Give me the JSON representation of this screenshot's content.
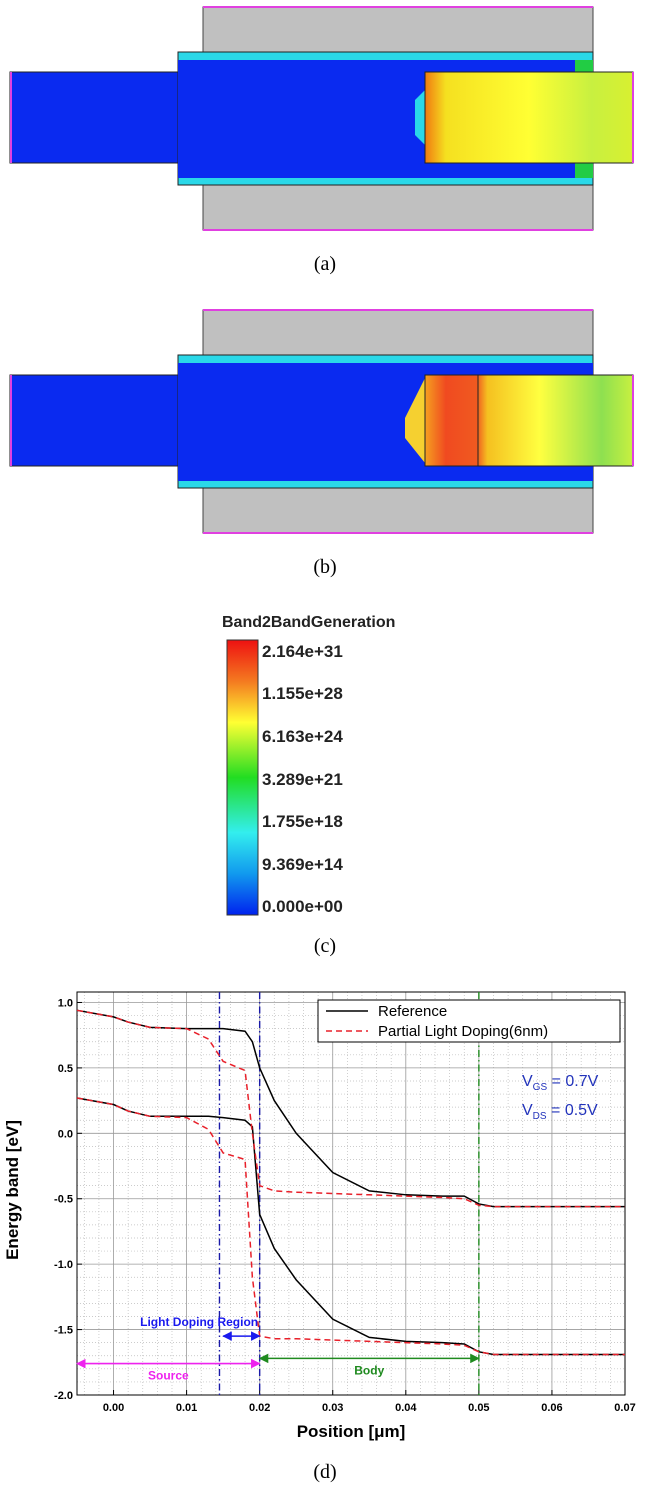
{
  "figure": {
    "panel_labels": [
      "(a)",
      "(b)",
      "(c)",
      "(d)"
    ],
    "colorbar": {
      "title": "Band2BandGeneration",
      "labels": [
        "2.164e+31",
        "1.155e+28",
        "6.163e+24",
        "3.289e+21",
        "1.755e+18",
        "9.369e+14",
        "0.000e+00"
      ]
    }
  },
  "chart_data": {
    "type": "line",
    "xlabel": "Position [μm]",
    "ylabel": "Energy band [eV]",
    "x": [
      -0.005,
      0,
      0.002,
      0.005,
      0.01,
      0.013,
      0.015,
      0.018,
      0.019,
      0.02,
      0.022,
      0.025,
      0.03,
      0.035,
      0.04,
      0.045,
      0.048,
      0.05,
      0.052,
      0.07
    ],
    "series": [
      {
        "name": "Reference",
        "color": "#000000",
        "dashed": false,
        "bands": [
          [
            0.94,
            0.89,
            0.85,
            0.81,
            0.8,
            0.8,
            0.8,
            0.78,
            0.7,
            0.5,
            0.25,
            0.0,
            -0.3,
            -0.44,
            -0.47,
            -0.48,
            -0.48,
            -0.54,
            -0.56,
            -0.56
          ],
          [
            0.27,
            0.22,
            0.17,
            0.13,
            0.13,
            0.13,
            0.12,
            0.1,
            0.05,
            -0.62,
            -0.88,
            -1.12,
            -1.42,
            -1.56,
            -1.59,
            -1.6,
            -1.61,
            -1.67,
            -1.69,
            -1.69
          ]
        ]
      },
      {
        "name": "Partial Light Doping(6nm)",
        "color": "#e8202a",
        "dashed": true,
        "bands": [
          [
            0.94,
            0.89,
            0.85,
            0.81,
            0.8,
            0.72,
            0.55,
            0.48,
            0.0,
            -0.4,
            -0.44,
            -0.45,
            -0.46,
            -0.47,
            -0.48,
            -0.49,
            -0.5,
            -0.55,
            -0.56,
            -0.56
          ],
          [
            0.27,
            0.22,
            0.17,
            0.13,
            0.12,
            0.03,
            -0.15,
            -0.2,
            -1.1,
            -1.55,
            -1.57,
            -1.57,
            -1.58,
            -1.59,
            -1.6,
            -1.61,
            -1.62,
            -1.67,
            -1.69,
            -1.69
          ]
        ]
      }
    ],
    "xlim": [
      -0.005,
      0.07
    ],
    "ylim": [
      -2,
      1.08
    ],
    "xticks": [
      {
        "value": 0,
        "label": "0.00"
      },
      {
        "value": 0.01,
        "label": "0.01"
      },
      {
        "value": 0.02,
        "label": "0.02"
      },
      {
        "value": 0.03,
        "label": "0.03"
      },
      {
        "value": 0.04,
        "label": "0.04"
      },
      {
        "value": 0.05,
        "label": "0.05"
      },
      {
        "value": 0.06,
        "label": "0.06"
      },
      {
        "value": 0.07,
        "label": "0.07"
      }
    ],
    "yticks": [
      {
        "value": 1,
        "label": "1.0"
      },
      0.5,
      {
        "value": 0,
        "label": "0.0"
      },
      -0.5,
      {
        "value": -1,
        "label": "-1.0"
      },
      -1.5,
      {
        "value": -2,
        "label": "-2.0"
      }
    ],
    "grid": true,
    "legend": "upper right",
    "vlines": [
      {
        "x": 0.0145,
        "color": "#1a1aa8"
      },
      {
        "x": 0.02,
        "color": "#1a1aa8"
      },
      {
        "x": 0.05,
        "color": "#1f8a1f"
      }
    ],
    "arrows": [
      {
        "label": "Light Doping Region",
        "x": [
          0.015,
          0.02
        ],
        "y": -1.55,
        "color": "#1a1aee"
      },
      {
        "label": "Source",
        "x": [
          -0.005,
          0.02
        ],
        "y": -1.76,
        "color": "#ee22ee"
      },
      {
        "label": "Body",
        "x": [
          0.02,
          0.05
        ],
        "y": -1.72,
        "color": "#1f8a1f"
      }
    ],
    "annotations": [
      {
        "main": "V",
        "sub": "GS",
        "rest": " = 0.7V"
      },
      {
        "main": "V",
        "sub": "DS",
        "rest": " = 0.5V"
      }
    ]
  }
}
